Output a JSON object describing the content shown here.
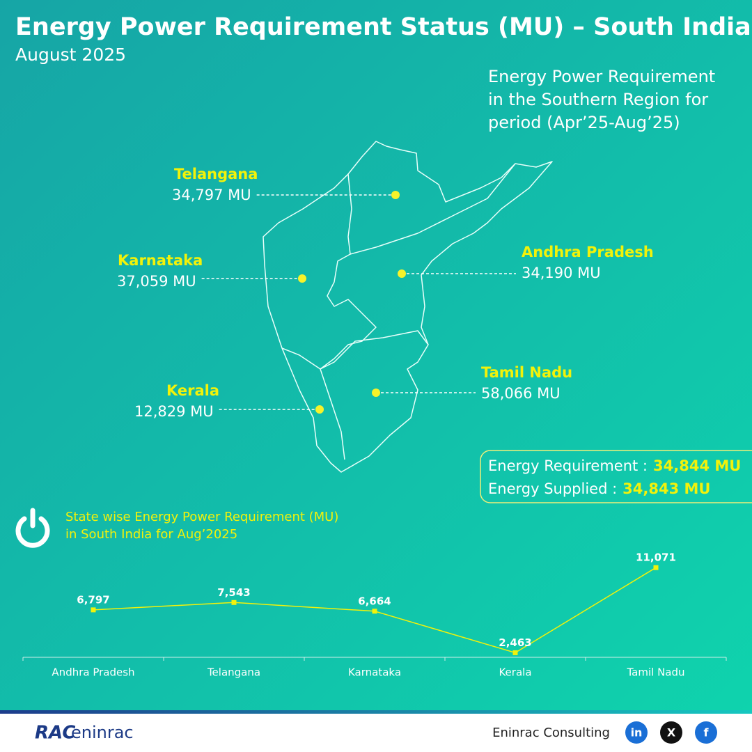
{
  "header": {
    "title": "Energy Power Requirement Status (MU) – South India",
    "subtitle": "August 2025"
  },
  "region_note": [
    "Energy Power Requirement",
    "in the Southern Region for",
    "period (Apr’25-Aug’25)"
  ],
  "map_labels": [
    {
      "name": "Telangana",
      "value": "34,797 MU"
    },
    {
      "name": "Karnataka",
      "value": "37,059 MU"
    },
    {
      "name": "Andhra Pradesh",
      "value": "34,190 MU"
    },
    {
      "name": "Kerala",
      "value": "12,829 MU"
    },
    {
      "name": "Tamil Nadu",
      "value": "58,066 MU"
    }
  ],
  "summary": [
    {
      "label": "Energy Requirement :",
      "value": "34,844 MU"
    },
    {
      "label": "Energy Supplied :",
      "value": "34,843 MU"
    }
  ],
  "chart_data": {
    "type": "line",
    "title": [
      "State wise Energy Power Requirement (MU)",
      "in South India for Aug’2025"
    ],
    "categories": [
      "Andhra Pradesh",
      "Telangana",
      "Karnataka",
      "Kerala",
      "Tamil Nadu"
    ],
    "values": [
      6797,
      7543,
      6664,
      2463,
      11071
    ],
    "value_labels": [
      "6,797",
      "7,543",
      "6,664",
      "2,463",
      "11,071"
    ],
    "color": "#f2f20a",
    "ylim": [
      2000,
      12000
    ]
  },
  "footer": {
    "logo": [
      "RAC",
      "eninrac"
    ],
    "company": "Eninrac Consulting",
    "social": [
      "in",
      "X",
      "f"
    ]
  }
}
